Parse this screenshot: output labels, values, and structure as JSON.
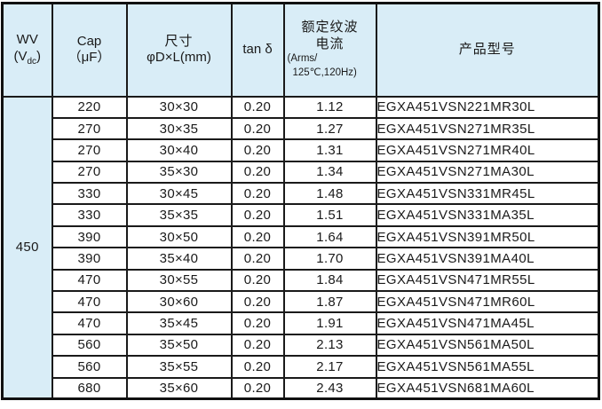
{
  "table": {
    "colors": {
      "header_bg": "#d9edf7",
      "border": "#1a1a1a",
      "row_bg": "#ffffff",
      "text": "#1a1a1a"
    },
    "headers": {
      "wv": {
        "line1": "WV",
        "line2_pre": "(V",
        "line2_sub": "dc",
        "line2_post": ")"
      },
      "cap": {
        "line1": "Cap",
        "line2": "（μF）"
      },
      "size": {
        "line1": "尺寸",
        "line2": "φD×L(mm)"
      },
      "tand": {
        "line1": "tan δ"
      },
      "ripple": {
        "line1": "额定纹波",
        "line2": "电流",
        "line3": "(Arms/",
        "line4": "125℃,120Hz)"
      },
      "model": {
        "line1": "产品型号"
      }
    },
    "wv_value": "450",
    "rows": [
      {
        "cap": "220",
        "size": "30×30",
        "tand": "0.20",
        "ripple": "1.12",
        "model": "EGXA451VSN221MR30L"
      },
      {
        "cap": "270",
        "size": "30×35",
        "tand": "0.20",
        "ripple": "1.27",
        "model": "EGXA451VSN271MR35L"
      },
      {
        "cap": "270",
        "size": "30×40",
        "tand": "0.20",
        "ripple": "1.31",
        "model": "EGXA451VSN271MR40L"
      },
      {
        "cap": "270",
        "size": "35×30",
        "tand": "0.20",
        "ripple": "1.34",
        "model": "EGXA451VSN271MA30L"
      },
      {
        "cap": "330",
        "size": "30×45",
        "tand": "0.20",
        "ripple": "1.48",
        "model": "EGXA451VSN331MR45L"
      },
      {
        "cap": "330",
        "size": "35×35",
        "tand": "0.20",
        "ripple": "1.51",
        "model": "EGXA451VSN331MA35L"
      },
      {
        "cap": "390",
        "size": "30×50",
        "tand": "0.20",
        "ripple": "1.64",
        "model": "EGXA451VSN391MR50L"
      },
      {
        "cap": "390",
        "size": "35×40",
        "tand": "0.20",
        "ripple": "1.70",
        "model": "EGXA451VSN391MA40L"
      },
      {
        "cap": "470",
        "size": "30×55",
        "tand": "0.20",
        "ripple": "1.84",
        "model": "EGXA451VSN471MR55L"
      },
      {
        "cap": "470",
        "size": "30×60",
        "tand": "0.20",
        "ripple": "1.87",
        "model": "EGXA451VSN471MR60L"
      },
      {
        "cap": "470",
        "size": "35×45",
        "tand": "0.20",
        "ripple": "1.91",
        "model": "EGXA451VSN471MA45L"
      },
      {
        "cap": "560",
        "size": "35×50",
        "tand": "0.20",
        "ripple": "2.13",
        "model": "EGXA451VSN561MA50L"
      },
      {
        "cap": "560",
        "size": "35×55",
        "tand": "0.20",
        "ripple": "2.17",
        "model": "EGXA451VSN561MA55L"
      },
      {
        "cap": "680",
        "size": "35×60",
        "tand": "0.20",
        "ripple": "2.43",
        "model": "EGXA451VSN681MA60L"
      }
    ]
  }
}
